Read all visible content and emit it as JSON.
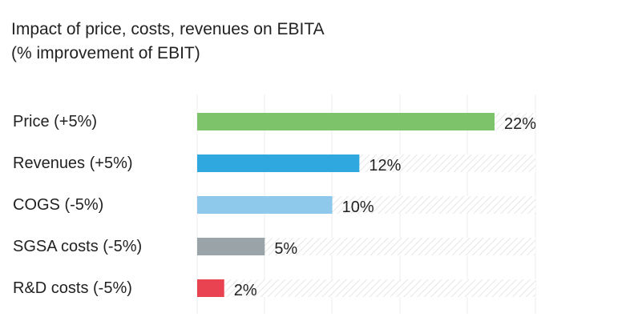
{
  "chart_data": {
    "type": "bar",
    "orientation": "horizontal",
    "title": "Impact of price, costs, revenues on EBITA",
    "subtitle": "(% improvement of EBIT)",
    "categories": [
      "Price (+5%)",
      "Revenues (+5%)",
      "COGS (-5%)",
      "SGSA costs (-5%)",
      "R&D costs (-5%)"
    ],
    "values": [
      22,
      12,
      10,
      5,
      2
    ],
    "value_labels": [
      "22%",
      "12%",
      "10%",
      "5%",
      "2%"
    ],
    "colors": [
      "#7cc36a",
      "#2fa8e0",
      "#8ec9ec",
      "#9aa3a8",
      "#e94352"
    ],
    "xlim": [
      0,
      25
    ],
    "xlabel": "",
    "ylabel": "",
    "grid": true,
    "legend": "none"
  }
}
